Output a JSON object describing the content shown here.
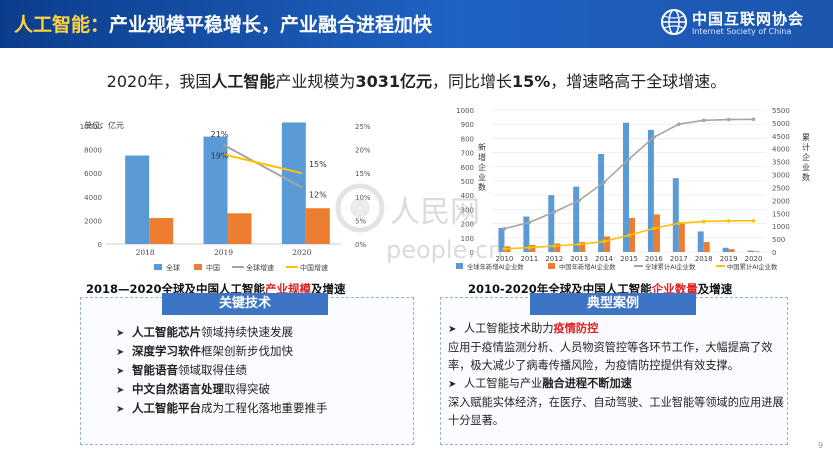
{
  "header": {
    "title_highlight": "人工智能：",
    "title_rest": "产业规模平稳增长，产业融合进程加快",
    "logo_cn": "中国互联网协会",
    "logo_en": "Internet Society of China"
  },
  "headline": {
    "p1": "2020年，我国",
    "b1": "人工智能",
    "p2": "产业规模为",
    "b2": "3031亿元",
    "p3": "，同比增长",
    "b3": "15%",
    "p4": "，增速略高于全球增速。"
  },
  "left_caption": {
    "before": "2018—2020全球及中国人工智能",
    "red": "产业规模",
    "after": "及增速"
  },
  "right_caption": {
    "before": "2010-2020年全球及中国人工智能",
    "red": "企业数量",
    "after": "及增速"
  },
  "key_tech": {
    "title": "关键技术",
    "items": [
      {
        "bold": "人工智能芯片",
        "rest": "领域持续快速发展"
      },
      {
        "bold": "深度学习软件",
        "rest": "框架创新步伐加快"
      },
      {
        "bold": "智能语音",
        "rest": "领域取得佳绩"
      },
      {
        "bold": "中文自然语言处理",
        "rest": "取得突破"
      },
      {
        "bold": "人工智能平台",
        "rest": "成为工程化落地重要推手"
      }
    ]
  },
  "cases": {
    "title": "典型案例",
    "c1_head": "人工智能技术助力",
    "c1_bold": "疫情防控",
    "c1_body": "应用于疫情监测分析、人员物资管控等各环节工作，大幅提高了效率，极大减少了病毒传播风险，为疫情防控提供有效支撑。",
    "c2_head": "人工智能与产业",
    "c2_bold": "融合进程不断加速",
    "c2_body": "深入赋能实体经济，在医疗、自动驾驶、工业智能等领域的应用进展十分显著。"
  },
  "watermark": {
    "cn": "人民网",
    "en": "people.cn"
  },
  "page_number": "9",
  "colors": {
    "header": "#1f63c3",
    "highlight": "#ffd33d",
    "accent_red": "#e02020",
    "blue": "#5b9bd5",
    "orange": "#ed7d31",
    "gray": "#a5a5a5",
    "yellow": "#ffc000"
  },
  "chart_data": [
    {
      "type": "bar",
      "unit_label": "单位：亿元",
      "categories": [
        "2018",
        "2019",
        "2020"
      ],
      "series": [
        {
          "name": "全球",
          "values": [
            7500,
            9100,
            10300
          ],
          "axis": "left"
        },
        {
          "name": "中国",
          "values": [
            2200,
            2600,
            3031
          ],
          "axis": "left"
        },
        {
          "name": "全球增速",
          "values": [
            null,
            21,
            12
          ],
          "axis": "right",
          "line": true
        },
        {
          "name": "中国增速",
          "values": [
            null,
            19,
            15
          ],
          "axis": "right",
          "line": true
        }
      ],
      "ylim": [
        0,
        10000
      ],
      "yticks": [
        "0",
        "2000",
        "4000",
        "6000",
        "8000",
        "10000"
      ],
      "y2lim": [
        0,
        25
      ],
      "y2ticks": [
        "0%",
        "5%",
        "10%",
        "15%",
        "20%",
        "25%"
      ],
      "annotations": [
        "21%",
        "19%",
        "15%",
        "12%"
      ],
      "legend": "bottom"
    },
    {
      "type": "bar",
      "categories": [
        "2010",
        "2011",
        "2012",
        "2013",
        "2014",
        "2015",
        "2016",
        "2017",
        "2018",
        "2019",
        "2020"
      ],
      "ylabel": "新增企业数",
      "y2label": "累计企业数",
      "ylim": [
        0,
        1000
      ],
      "yticks": [
        "0",
        "100",
        "200",
        "300",
        "400",
        "500",
        "600",
        "700",
        "800",
        "900",
        "1000"
      ],
      "y2lim": [
        0,
        5500
      ],
      "y2ticks": [
        "0",
        "500",
        "1000",
        "1500",
        "2000",
        "2500",
        "3000",
        "3500",
        "4000",
        "4500",
        "5000",
        "5500"
      ],
      "series": [
        {
          "name": "全球年新增AI企业数",
          "values": [
            170,
            250,
            400,
            460,
            690,
            910,
            860,
            520,
            145,
            30,
            10
          ],
          "axis": "left"
        },
        {
          "name": "中国年新增AI企业数",
          "values": [
            40,
            50,
            60,
            70,
            110,
            240,
            265,
            200,
            70,
            20,
            5
          ],
          "axis": "left"
        },
        {
          "name": "全球累计AI企业数",
          "values": [
            900,
            1150,
            1550,
            2000,
            2700,
            3600,
            4450,
            4950,
            5100,
            5130,
            5140
          ],
          "axis": "right",
          "line": true
        },
        {
          "name": "中国累计AI企业数",
          "values": [
            120,
            170,
            230,
            300,
            410,
            650,
            915,
            1115,
            1185,
            1205,
            1210
          ],
          "axis": "right",
          "line": true
        }
      ],
      "legend": "bottom"
    }
  ]
}
